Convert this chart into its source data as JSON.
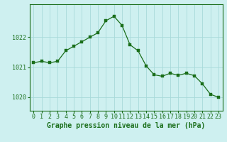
{
  "x": [
    0,
    1,
    2,
    3,
    4,
    5,
    6,
    7,
    8,
    9,
    10,
    11,
    12,
    13,
    14,
    15,
    16,
    17,
    18,
    19,
    20,
    21,
    22,
    23
  ],
  "y": [
    1021.15,
    1021.2,
    1021.15,
    1021.2,
    1021.55,
    1021.7,
    1021.85,
    1022.0,
    1022.15,
    1022.55,
    1022.7,
    1022.4,
    1021.75,
    1021.55,
    1021.05,
    1020.75,
    1020.7,
    1020.8,
    1020.73,
    1020.8,
    1020.72,
    1020.45,
    1020.1,
    1020.0
  ],
  "line_color": "#1a6e1a",
  "marker_color": "#1a6e1a",
  "bg_color": "#cef0f0",
  "grid_color": "#a8dada",
  "axis_color": "#1a6e1a",
  "xlabel": "Graphe pression niveau de la mer (hPa)",
  "xlabel_fontsize": 7.0,
  "tick_fontsize": 6.0,
  "ylabel_ticks": [
    1020,
    1021,
    1022
  ],
  "ylim": [
    1019.55,
    1023.1
  ],
  "xlim": [
    -0.5,
    23.5
  ]
}
